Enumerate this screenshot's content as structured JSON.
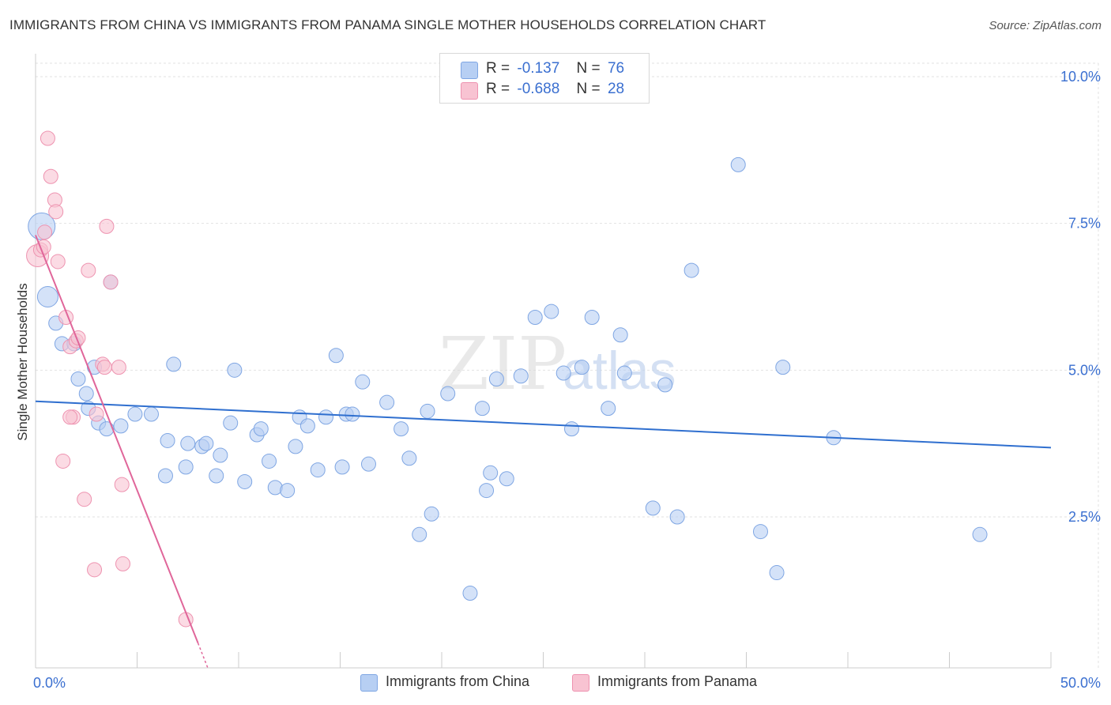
{
  "title": "IMMIGRANTS FROM CHINA VS IMMIGRANTS FROM PANAMA SINGLE MOTHER HOUSEHOLDS CORRELATION CHART",
  "source": "Source: ZipAtlas.com",
  "watermark": {
    "zip": "ZIP",
    "atlas": "atlas"
  },
  "legend": {
    "china": {
      "r_label": "R =",
      "r_value": "-0.137",
      "n_label": "N =",
      "n_value": "76"
    },
    "panama": {
      "r_label": "R =",
      "r_value": "-0.688",
      "n_label": "N =",
      "n_value": "28"
    }
  },
  "colors": {
    "china_fill": "#b7cff3",
    "china_stroke": "#7fa6e3",
    "china_line": "#2f6fcf",
    "panama_fill": "#f8c3d2",
    "panama_stroke": "#ee93b0",
    "panama_line": "#e0669a",
    "axis_label": "#3a6fd0"
  },
  "chart_data": {
    "type": "scatter",
    "xlabel": "",
    "ylabel": "Single Mother Households",
    "xlim": [
      0,
      50
    ],
    "ylim": [
      0,
      10.5
    ],
    "x_ticks": [
      "0.0%",
      "50.0%"
    ],
    "y_ticks": [
      {
        "v": 2.5,
        "label": "2.5%"
      },
      {
        "v": 5.0,
        "label": "5.0%"
      },
      {
        "v": 7.5,
        "label": "7.5%"
      },
      {
        "v": 10.0,
        "label": "10.0%"
      }
    ],
    "grid": true,
    "series": [
      {
        "name": "Immigrants from China",
        "trend": {
          "x": [
            0,
            50
          ],
          "y": [
            4.47,
            3.68
          ]
        },
        "points": [
          [
            0.3,
            7.45
          ],
          [
            0.6,
            6.25
          ],
          [
            1.0,
            5.8
          ],
          [
            1.3,
            5.45
          ],
          [
            1.9,
            5.45
          ],
          [
            2.1,
            4.85
          ],
          [
            2.9,
            5.05
          ],
          [
            2.5,
            4.6
          ],
          [
            2.6,
            4.35
          ],
          [
            3.7,
            6.5
          ],
          [
            3.1,
            4.1
          ],
          [
            3.5,
            4.0
          ],
          [
            4.9,
            4.25
          ],
          [
            4.2,
            4.05
          ],
          [
            5.7,
            4.25
          ],
          [
            6.5,
            3.8
          ],
          [
            6.8,
            5.1
          ],
          [
            7.5,
            3.75
          ],
          [
            6.4,
            3.2
          ],
          [
            7.4,
            3.35
          ],
          [
            8.2,
            3.7
          ],
          [
            8.4,
            3.75
          ],
          [
            8.9,
            3.2
          ],
          [
            9.1,
            3.55
          ],
          [
            9.6,
            4.1
          ],
          [
            9.8,
            5.0
          ],
          [
            10.3,
            3.1
          ],
          [
            10.9,
            3.9
          ],
          [
            11.1,
            4.0
          ],
          [
            11.5,
            3.45
          ],
          [
            11.8,
            3.0
          ],
          [
            12.4,
            2.95
          ],
          [
            12.8,
            3.7
          ],
          [
            13.0,
            4.2
          ],
          [
            13.4,
            4.05
          ],
          [
            13.9,
            3.3
          ],
          [
            14.3,
            4.2
          ],
          [
            14.8,
            5.25
          ],
          [
            15.1,
            3.35
          ],
          [
            15.3,
            4.25
          ],
          [
            15.6,
            4.25
          ],
          [
            16.1,
            4.8
          ],
          [
            16.4,
            3.4
          ],
          [
            17.3,
            4.45
          ],
          [
            18.0,
            4.0
          ],
          [
            18.4,
            3.5
          ],
          [
            18.9,
            2.2
          ],
          [
            19.3,
            4.3
          ],
          [
            19.5,
            2.55
          ],
          [
            20.3,
            4.6
          ],
          [
            21.4,
            1.2
          ],
          [
            22.0,
            4.35
          ],
          [
            22.2,
            2.95
          ],
          [
            22.4,
            3.25
          ],
          [
            22.7,
            4.85
          ],
          [
            23.2,
            3.15
          ],
          [
            23.9,
            4.9
          ],
          [
            24.6,
            5.9
          ],
          [
            25.4,
            6.0
          ],
          [
            26.0,
            4.95
          ],
          [
            26.4,
            4.0
          ],
          [
            26.9,
            5.05
          ],
          [
            27.4,
            5.9
          ],
          [
            28.2,
            4.35
          ],
          [
            28.8,
            5.6
          ],
          [
            29.0,
            4.95
          ],
          [
            30.4,
            2.65
          ],
          [
            31.6,
            2.5
          ],
          [
            31.0,
            4.75
          ],
          [
            32.3,
            6.7
          ],
          [
            34.6,
            8.5
          ],
          [
            35.7,
            2.25
          ],
          [
            36.5,
            1.55
          ],
          [
            36.8,
            5.05
          ],
          [
            39.3,
            3.85
          ],
          [
            46.5,
            2.2
          ]
        ]
      },
      {
        "name": "Immigrants from Panama",
        "trend": {
          "x": [
            0,
            8.0
          ],
          "y": [
            7.3,
            0.35
          ]
        },
        "points": [
          [
            0.1,
            6.95
          ],
          [
            0.25,
            7.05
          ],
          [
            0.45,
            7.35
          ],
          [
            0.4,
            7.1
          ],
          [
            0.6,
            8.95
          ],
          [
            0.75,
            8.3
          ],
          [
            0.95,
            7.9
          ],
          [
            1.0,
            7.7
          ],
          [
            1.1,
            6.85
          ],
          [
            1.5,
            5.9
          ],
          [
            1.7,
            5.4
          ],
          [
            2.0,
            5.5
          ],
          [
            2.1,
            5.55
          ],
          [
            1.85,
            4.2
          ],
          [
            2.6,
            6.7
          ],
          [
            1.35,
            3.45
          ],
          [
            2.4,
            2.8
          ],
          [
            2.9,
            1.6
          ],
          [
            3.0,
            4.25
          ],
          [
            3.3,
            5.1
          ],
          [
            3.5,
            7.45
          ],
          [
            3.7,
            6.5
          ],
          [
            4.1,
            5.05
          ],
          [
            4.25,
            3.05
          ],
          [
            4.3,
            1.7
          ],
          [
            7.4,
            0.75
          ],
          [
            1.7,
            4.2
          ],
          [
            3.4,
            5.05
          ]
        ]
      }
    ]
  },
  "bottom_legend": {
    "china": "Immigrants from China",
    "panama": "Immigrants from Panama"
  }
}
